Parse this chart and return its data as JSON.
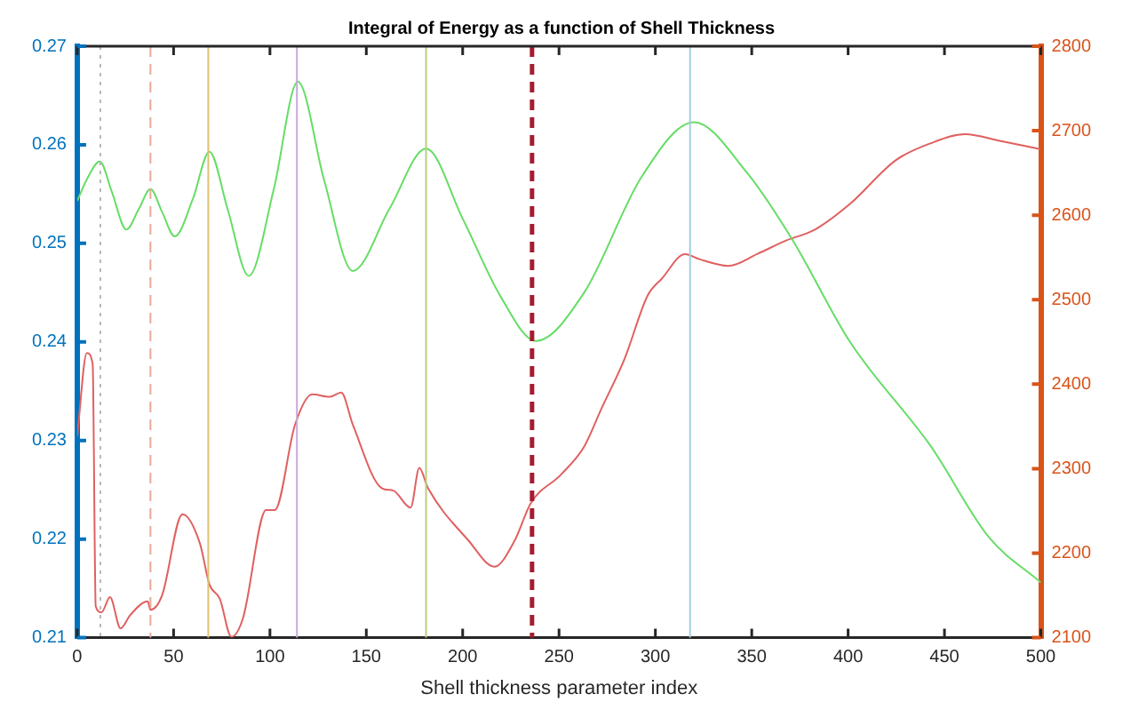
{
  "chart_data": {
    "type": "line",
    "title": "Integral of Energy as a function of Shell Thickness",
    "xlabel": "Shell thickness parameter index",
    "xlim": [
      0,
      500
    ],
    "xticks": [
      0,
      50,
      100,
      150,
      200,
      250,
      300,
      350,
      400,
      450,
      500
    ],
    "ylim": [
      0.21,
      0.27
    ],
    "yticks": [
      0.21,
      0.22,
      0.23,
      0.24,
      0.25,
      0.26,
      0.27
    ],
    "y2lim": [
      2100,
      2800
    ],
    "y2ticks": [
      2100,
      2200,
      2300,
      2400,
      2500,
      2600,
      2700,
      2800
    ],
    "grid": false,
    "legend": false,
    "marker": "none",
    "series": [
      {
        "color": "#66dd66",
        "axis": "y",
        "x": [
          0,
          5,
          11.7,
          18,
          25.5,
          32,
          38,
          44,
          50.6,
          60,
          68.6,
          78,
          89,
          102,
          114.5,
          128,
          143,
          162,
          181,
          200,
          220,
          238,
          263,
          293,
          320,
          347,
          371,
          401,
          443,
          473,
          500
        ],
        "values": [
          0.2543,
          0.2565,
          0.2583,
          0.2552,
          0.2514,
          0.2535,
          0.2555,
          0.2532,
          0.2507,
          0.2545,
          0.2593,
          0.2535,
          0.2467,
          0.2555,
          0.2664,
          0.2565,
          0.2472,
          0.2535,
          0.2596,
          0.2525,
          0.2445,
          0.2401,
          0.245,
          0.2568,
          0.2623,
          0.2573,
          0.2504,
          0.24,
          0.2294,
          0.2202,
          0.2156
        ]
      },
      {
        "color": "#e06060",
        "axis": "y2",
        "x": [
          0,
          5,
          8,
          9.6,
          12.6,
          17,
          22.5,
          27.6,
          36.6,
          38,
          44,
          54.6,
          63.6,
          68.6,
          74,
          80,
          86,
          98,
          102.5,
          113,
          122,
          131,
          137,
          143,
          158,
          164,
          173,
          177.5,
          182,
          203,
          216.5,
          227,
          235.3,
          251,
          263,
          272,
          284,
          296,
          303.4,
          315.4,
          322.8,
          337.8,
          352.8,
          367.8,
          382.8,
          400.8,
          424.7,
          442.7,
          460.7,
          478.7,
          500
        ],
        "values": [
          2339,
          2437,
          2424,
          2137,
          2130,
          2148,
          2111,
          2127,
          2143,
          2133,
          2150,
          2246,
          2212,
          2163,
          2146,
          2101,
          2123,
          2251,
          2251,
          2352,
          2388,
          2385,
          2390,
          2352,
          2277,
          2274,
          2254,
          2301,
          2277,
          2215,
          2184,
          2215,
          2259,
          2293,
          2326,
          2371,
          2430,
          2505,
          2525,
          2554,
          2548,
          2540,
          2554,
          2570,
          2583,
          2613,
          2665,
          2685,
          2696,
          2688,
          2678
        ]
      }
    ],
    "ref_lines": [
      {
        "axis": "x",
        "value": 12,
        "color": "#b8b8b8",
        "line_style": "dotted"
      },
      {
        "axis": "x",
        "value": 38,
        "color": "#e8a898",
        "line_style": "dashed"
      },
      {
        "axis": "x",
        "value": 68,
        "color": "#e0c070",
        "line_style": "solid"
      },
      {
        "axis": "x",
        "value": 114,
        "color": "#c8a8d8",
        "line_style": "solid"
      },
      {
        "axis": "x",
        "value": 181,
        "color": "#b8d080",
        "line_style": "solid"
      },
      {
        "axis": "x",
        "value": 236,
        "color": "#a51c30",
        "line_style": "dashed"
      },
      {
        "axis": "x",
        "value": 318,
        "color": "#a0d0e0",
        "line_style": "solid"
      }
    ]
  }
}
